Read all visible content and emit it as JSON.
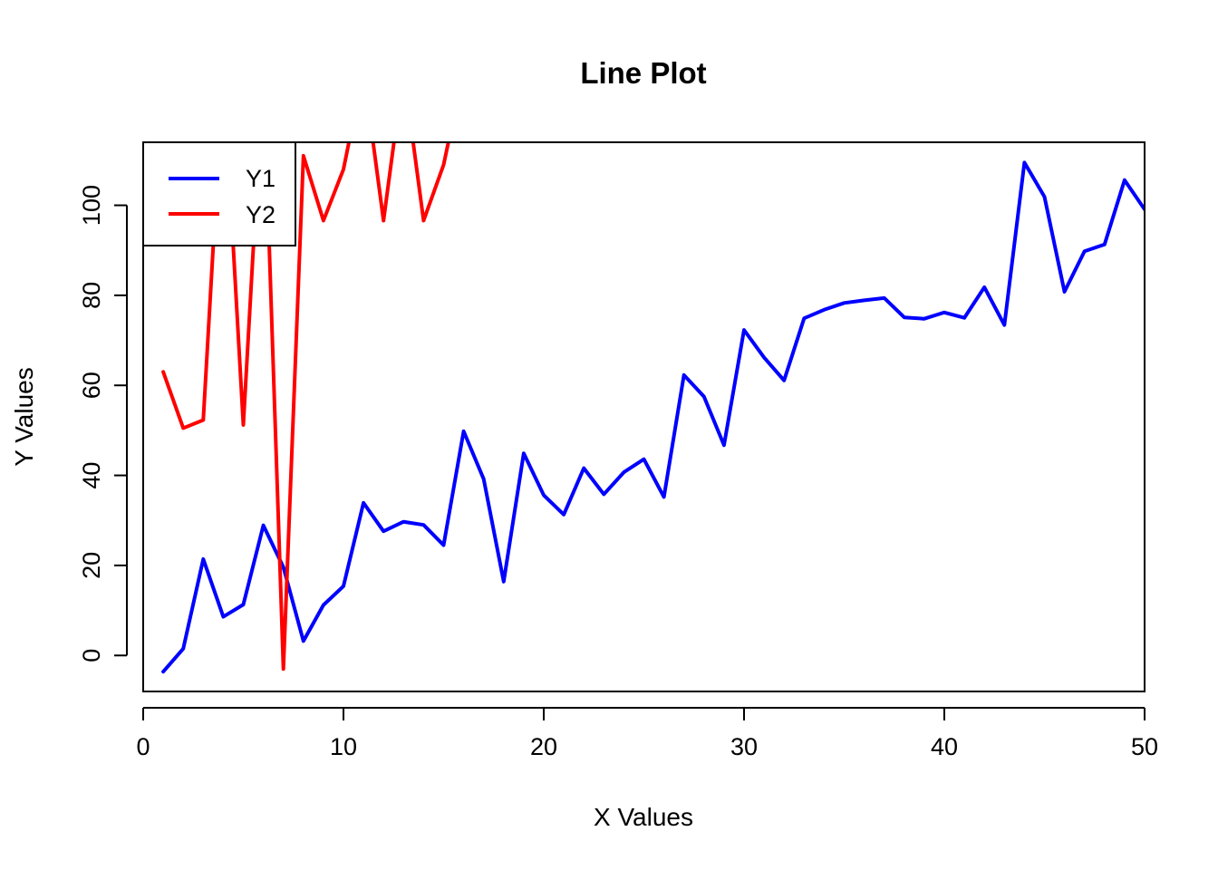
{
  "chart_data": {
    "type": "line",
    "title": "Line Plot",
    "xlabel": "X Values",
    "ylabel": "Y Values",
    "xlim": [
      0,
      50
    ],
    "ylim": [
      -8,
      114
    ],
    "xticks": [
      0,
      10,
      20,
      30,
      40,
      50
    ],
    "yticks": [
      0,
      20,
      40,
      60,
      80,
      100
    ],
    "grid": false,
    "legend_position": "top-left",
    "x": [
      1,
      2,
      3,
      4,
      5,
      6,
      7,
      8,
      9,
      10,
      11,
      12,
      13,
      14,
      15,
      16,
      17,
      18,
      19,
      20,
      21,
      22,
      23,
      24,
      25,
      26,
      27,
      28,
      29,
      30,
      31,
      32,
      33,
      34,
      35,
      36,
      37,
      38,
      39,
      40,
      41,
      42,
      43,
      44,
      45,
      46,
      47,
      48,
      49,
      50
    ],
    "series": [
      {
        "name": "Y1",
        "color": "#0000ff",
        "values": [
          -3.6,
          1.5,
          21.4,
          8.6,
          11.3,
          28.9,
          19.6,
          3.2,
          11.2,
          15.4,
          33.9,
          27.6,
          29.7,
          29.0,
          24.5,
          49.8,
          39.2,
          16.4,
          44.9,
          35.6,
          31.3,
          41.6,
          35.8,
          40.7,
          43.6,
          35.2,
          62.3,
          57.5,
          46.7,
          72.3,
          66.2,
          61.1,
          74.9,
          76.8,
          78.3,
          78.9,
          79.4,
          75.1,
          74.8,
          76.2,
          75.0,
          81.8,
          73.4,
          109.5,
          101.9,
          80.8,
          89.8,
          91.3,
          105.6,
          99.1
        ]
      },
      {
        "name": "Y2",
        "color": "#ff0000",
        "values": [
          63.0,
          50.5,
          52.3,
          130,
          51.2,
          130,
          -3.0,
          111.0,
          96.6,
          108.0,
          130,
          96.6,
          130,
          96.6,
          109.0,
          130,
          null,
          null,
          null,
          null,
          null,
          null,
          null,
          null,
          null,
          null,
          null,
          null,
          null,
          null,
          null,
          null,
          null,
          null,
          null,
          null,
          null,
          null,
          null,
          null,
          null,
          null,
          null,
          null,
          null,
          null,
          null,
          null,
          null,
          null
        ]
      }
    ]
  }
}
